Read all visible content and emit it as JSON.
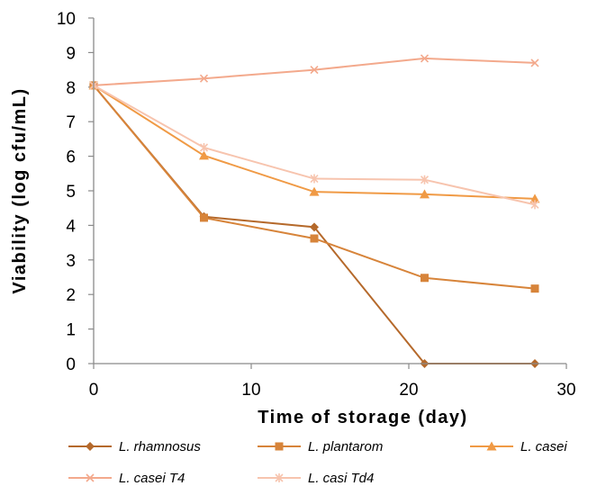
{
  "chart_data": {
    "type": "line",
    "title": "",
    "xlabel": "Time of storage (day)",
    "ylabel": "Viability (log cfu/mL)",
    "xlim": [
      0,
      30
    ],
    "ylim": [
      0,
      10
    ],
    "x_ticks": [
      0,
      10,
      20,
      30
    ],
    "y_ticks": [
      0,
      1,
      2,
      3,
      4,
      5,
      6,
      7,
      8,
      9,
      10
    ],
    "grid": false,
    "legend_position": "bottom",
    "x": [
      0,
      7,
      14,
      21,
      28
    ],
    "series": [
      {
        "name": "L. rhamnosus",
        "marker": "diamond",
        "color": "#B5692B",
        "values": [
          8.05,
          4.25,
          3.95,
          0,
          0
        ]
      },
      {
        "name": "L. plantarom",
        "marker": "square",
        "color": "#D7843A",
        "values": [
          8.05,
          4.22,
          3.62,
          2.48,
          2.17
        ]
      },
      {
        "name": "L. casei",
        "marker": "triangle",
        "color": "#F09A45",
        "values": [
          8.05,
          6.02,
          4.97,
          4.9,
          4.77
        ]
      },
      {
        "name": "L. casei T4",
        "marker": "x",
        "color": "#F3A98C",
        "values": [
          8.05,
          8.25,
          8.5,
          8.83,
          8.7
        ]
      },
      {
        "name": "L. casi Td4",
        "marker": "star",
        "color": "#F7C4AE",
        "values": [
          8.05,
          6.25,
          5.35,
          5.32,
          4.6
        ]
      }
    ]
  }
}
